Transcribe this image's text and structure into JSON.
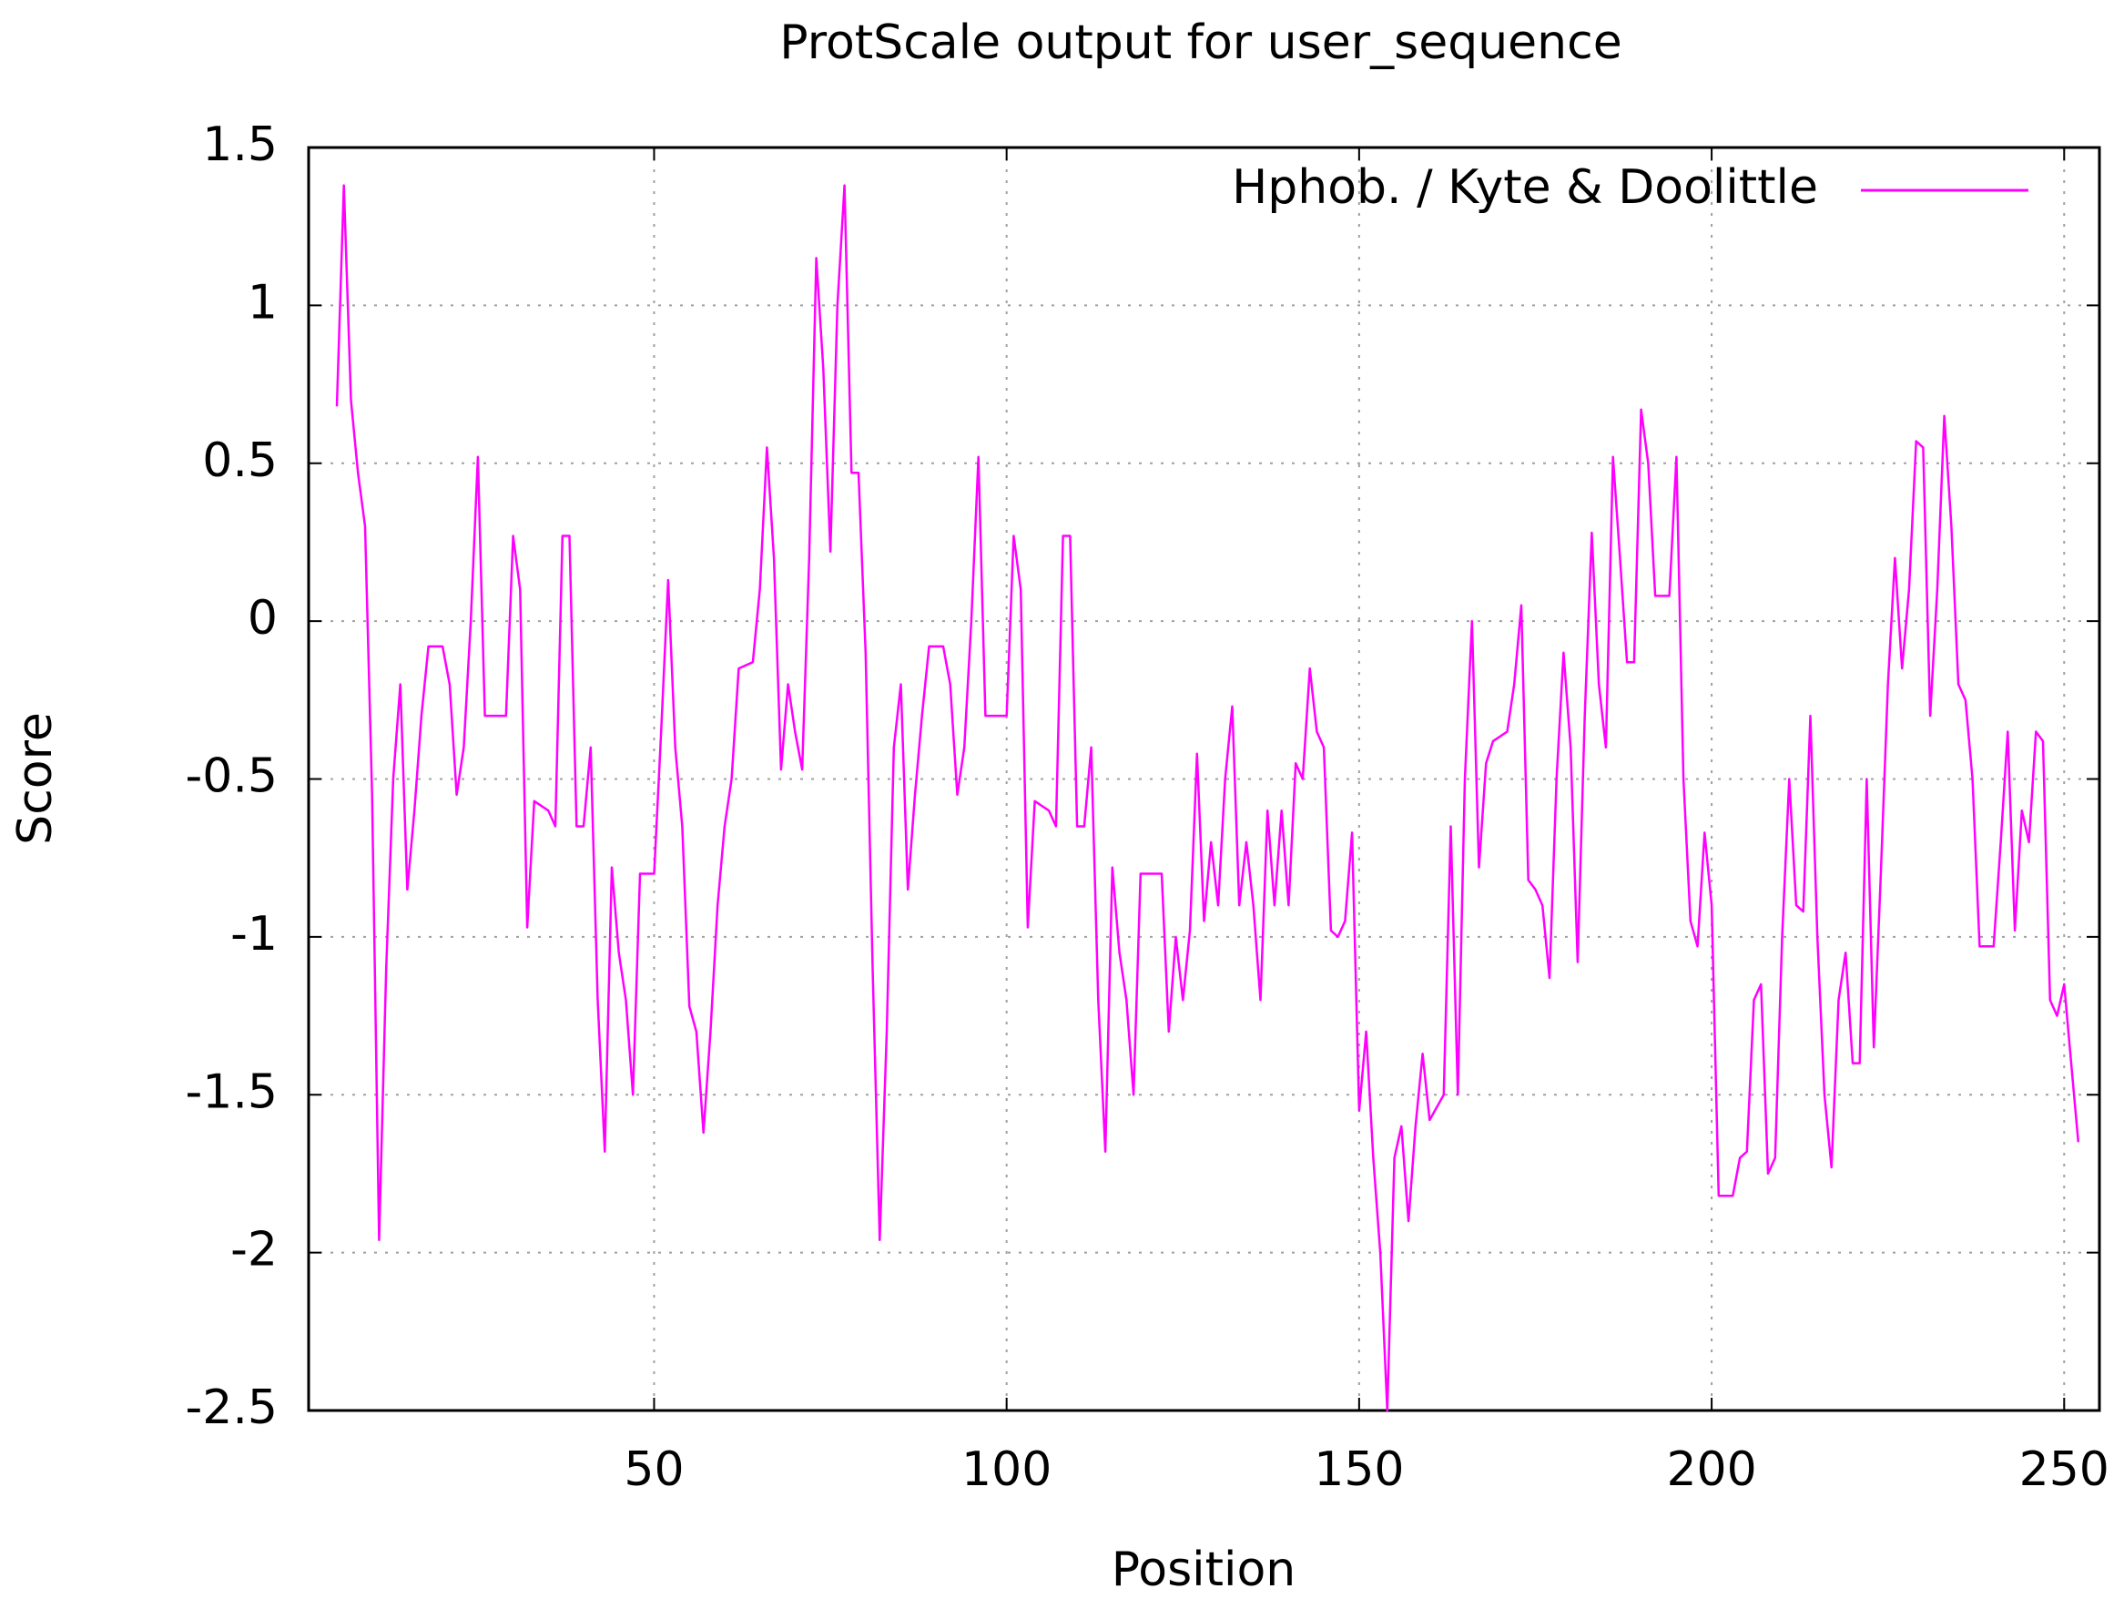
{
  "chart_data": {
    "type": "line",
    "title": "ProtScale output for user_sequence",
    "x_label": "Position",
    "y_label": "Score",
    "xlim": [
      1,
      255
    ],
    "ylim": [
      -2.5,
      1.5
    ],
    "xticks": [
      50,
      100,
      150,
      200,
      250
    ],
    "yticks": [
      -2.5,
      -2,
      -1.5,
      -1,
      -0.5,
      0,
      0.5,
      1,
      1.5
    ],
    "grid": true,
    "legend": "top-right",
    "x": [
      5,
      6,
      7,
      8,
      9,
      10,
      11,
      12,
      13,
      14,
      15,
      16,
      17,
      18,
      20,
      21,
      22,
      23,
      24,
      25,
      26,
      29,
      30,
      31,
      32,
      33,
      35,
      36,
      37,
      38,
      39,
      40,
      41,
      42,
      43,
      44,
      45,
      46,
      47,
      48,
      50,
      51,
      52,
      53,
      54,
      55,
      56,
      57,
      58,
      59,
      60,
      61,
      62,
      64,
      65,
      66,
      67,
      68,
      69,
      70,
      71,
      72,
      73,
      74,
      75,
      76,
      77,
      78,
      79,
      80,
      81,
      82,
      83,
      84,
      85,
      86,
      87,
      88,
      89,
      91,
      92,
      93,
      94,
      95,
      96,
      97,
      100,
      101,
      102,
      103,
      104,
      106,
      107,
      108,
      109,
      110,
      111,
      112,
      113,
      114,
      115,
      116,
      117,
      118,
      119,
      122,
      123,
      124,
      125,
      126,
      127,
      128,
      129,
      130,
      131,
      132,
      133,
      134,
      135,
      136,
      137,
      138,
      139,
      140,
      141,
      142,
      143,
      144,
      145,
      146,
      147,
      148,
      149,
      150,
      151,
      152,
      153,
      154,
      155,
      156,
      157,
      158,
      159,
      160,
      162,
      163,
      164,
      165,
      166,
      167,
      168,
      169,
      171,
      172,
      173,
      174,
      175,
      176,
      177,
      178,
      179,
      180,
      181,
      182,
      183,
      184,
      185,
      186,
      187,
      188,
      189,
      190,
      191,
      192,
      194,
      195,
      196,
      197,
      198,
      199,
      200,
      201,
      203,
      204,
      205,
      206,
      207,
      208,
      209,
      210,
      211,
      212,
      213,
      214,
      215,
      216,
      217,
      218,
      219,
      220,
      221,
      222,
      223,
      224,
      225,
      226,
      227,
      228,
      229,
      230,
      231,
      232,
      233,
      234,
      235,
      236,
      237,
      238,
      240,
      241,
      242,
      243,
      244,
      245,
      246,
      247,
      248,
      249,
      250,
      251,
      252
    ],
    "series": [
      {
        "name": "Hphob. / Kyte & Doolittle",
        "color": "#ff00ff",
        "values": [
          0.68,
          1.38,
          0.7,
          0.47,
          0.3,
          -0.55,
          -1.96,
          -1.1,
          -0.5,
          -0.2,
          -0.85,
          -0.6,
          -0.3,
          -0.08,
          -0.08,
          -0.2,
          -0.55,
          -0.4,
          0,
          0.52,
          -0.3,
          -0.3,
          0.27,
          0.1,
          -0.97,
          -0.57,
          -0.6,
          -0.65,
          0.27,
          0.27,
          -0.65,
          -0.65,
          -0.4,
          -1.2,
          -1.68,
          -0.78,
          -1.05,
          -1.2,
          -1.5,
          -0.8,
          -0.8,
          -0.35,
          0.13,
          -0.4,
          -0.65,
          -1.22,
          -1.3,
          -1.62,
          -1.3,
          -0.9,
          -0.65,
          -0.5,
          -0.15,
          -0.13,
          0.1,
          0.55,
          0.2,
          -0.47,
          -0.2,
          -0.35,
          -0.47,
          0.2,
          1.15,
          0.8,
          0.22,
          1.0,
          1.38,
          0.47,
          0.47,
          -0.1,
          -1.1,
          -1.96,
          -1.3,
          -0.4,
          -0.2,
          -0.85,
          -0.55,
          -0.3,
          -0.08,
          -0.08,
          -0.2,
          -0.55,
          -0.4,
          0,
          0.52,
          -0.3,
          -0.3,
          0.27,
          0.1,
          -0.97,
          -0.57,
          -0.6,
          -0.65,
          0.27,
          0.27,
          -0.65,
          -0.65,
          -0.4,
          -1.2,
          -1.68,
          -0.78,
          -1.05,
          -1.2,
          -1.5,
          -0.8,
          -0.8,
          -1.3,
          -1.0,
          -1.2,
          -0.98,
          -0.42,
          -0.95,
          -0.7,
          -0.9,
          -0.5,
          -0.27,
          -0.9,
          -0.7,
          -0.9,
          -1.2,
          -0.6,
          -0.9,
          -0.6,
          -0.9,
          -0.45,
          -0.5,
          -0.15,
          -0.35,
          -0.4,
          -0.98,
          -1.0,
          -0.95,
          -0.67,
          -1.55,
          -1.3,
          -1.7,
          -2.0,
          -2.5,
          -1.7,
          -1.6,
          -1.9,
          -1.6,
          -1.37,
          -1.58,
          -1.5,
          -0.65,
          -1.5,
          -0.5,
          0,
          -0.78,
          -0.45,
          -0.38,
          -0.35,
          -0.2,
          0.05,
          -0.82,
          -0.85,
          -0.9,
          -1.13,
          -0.5,
          -0.1,
          -0.4,
          -1.08,
          -0.3,
          0.28,
          -0.2,
          -0.4,
          0.52,
          0.2,
          -0.13,
          -0.13,
          0.67,
          0.5,
          0.08,
          0.08,
          0.52,
          -0.5,
          -0.95,
          -1.03,
          -0.67,
          -0.9,
          -1.82,
          -1.82,
          -1.7,
          -1.68,
          -1.2,
          -1.15,
          -1.75,
          -1.7,
          -1.0,
          -0.5,
          -0.9,
          -0.92,
          -0.3,
          -1.0,
          -1.5,
          -1.73,
          -1.2,
          -1.05,
          -1.4,
          -1.4,
          -0.5,
          -1.35,
          -0.8,
          -0.2,
          0.2,
          -0.15,
          0.1,
          0.57,
          0.55,
          -0.3,
          0.1,
          0.65,
          0.3,
          -0.2,
          -0.25,
          -0.5,
          -1.03,
          -1.03,
          -0.7,
          -0.35,
          -0.98,
          -0.6,
          -0.7,
          -0.35,
          -0.38,
          -1.2,
          -1.25,
          -1.15,
          -1.4,
          -1.65
        ]
      }
    ]
  }
}
